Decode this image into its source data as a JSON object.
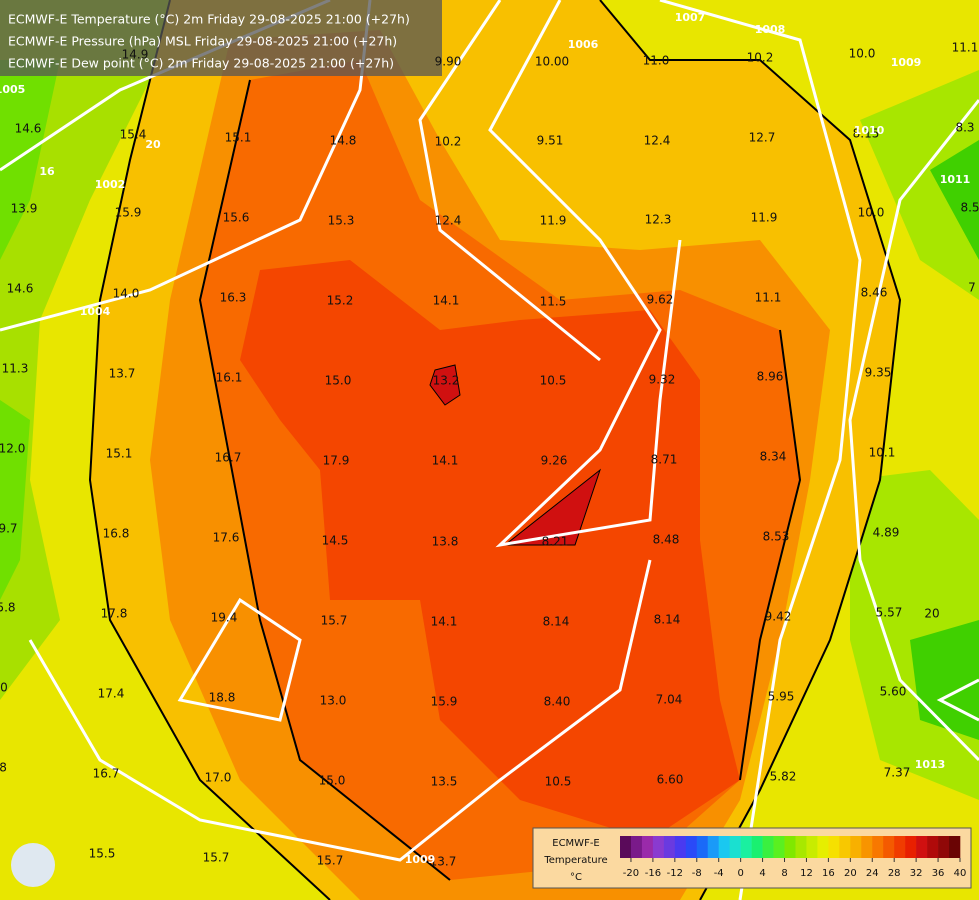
{
  "header": {
    "lines": [
      "ECMWF-E Temperature (°C) 2m Friday 29-08-2025 21:00 (+27h)",
      "ECMWF-E Pressure (hPa) MSL Friday 29-08-2025 21:00 (+27h)",
      "ECMWF-E Dew point (°C) 2m Friday 29-08-2025 21:00 (+27h)"
    ]
  },
  "map_labels": [
    "14.9",
    "9.90",
    "10.00",
    "11.0",
    "10.2",
    "10.0",
    "11.1",
    "14.6",
    "15.4",
    "15.1",
    "14.8",
    "10.2",
    "9.51",
    "12.4",
    "12.7",
    "8.15",
    "8.3",
    "13.9",
    "15.9",
    "15.6",
    "15.3",
    "12.4",
    "11.9",
    "12.3",
    "11.9",
    "10.0",
    "8.5",
    "14.6",
    "14.0",
    "16.3",
    "15.2",
    "14.1",
    "11.5",
    "9.62",
    "11.1",
    "8.46",
    "7",
    "11.3",
    "13.7",
    "16.1",
    "15.0",
    "13.2",
    "10.5",
    "9.32",
    "8.96",
    "9.35",
    "12.0",
    "15.1",
    "16.7",
    "17.9",
    "14.1",
    "9.26",
    "8.71",
    "8.34",
    "10.1",
    "9.7",
    "16.8",
    "17.6",
    "14.5",
    "13.8",
    "8.21",
    "8.48",
    "8.53",
    "4.89",
    "5.8",
    "17.8",
    "19.4",
    "15.7",
    "14.1",
    "8.14",
    "8.14",
    "9.42",
    "5.57",
    "20",
    "0",
    "17.4",
    "18.8",
    "13.0",
    "15.9",
    "8.40",
    "7.04",
    "5.95",
    "5.60",
    "8",
    "16.7",
    "17.0",
    "15.0",
    "13.5",
    "10.5",
    "6.60",
    "5.82",
    "7.37",
    "15.5",
    "15.7",
    "15.7",
    "13.7"
  ],
  "contour_labels": [
    "1004",
    "1006",
    "1007",
    "1009",
    "1010",
    "1011",
    "1002",
    "20",
    "16",
    "1005",
    "1008",
    "1013",
    "1009"
  ],
  "legend": {
    "title": "ECMWF-E",
    "subtitle": "Temperature",
    "unit": "°C",
    "range": [
      -22,
      40
    ],
    "ticks": [
      -20,
      -16,
      -12,
      -8,
      -4,
      0,
      4,
      8,
      12,
      16,
      20,
      24,
      28,
      32,
      36,
      40
    ],
    "colors": [
      "#5a0a5a",
      "#7a1a8a",
      "#9a2aaa",
      "#8a3ad0",
      "#6a3ae0",
      "#4a3af0",
      "#2a4af8",
      "#1a6af8",
      "#1a9af8",
      "#1ac8f0",
      "#1ae0d0",
      "#1af0a0",
      "#1af070",
      "#3af040",
      "#5af020",
      "#80e800",
      "#a8e800",
      "#c8ec00",
      "#e6ee00",
      "#f6e000",
      "#f8c800",
      "#f8b000",
      "#f89400",
      "#f87800",
      "#f45a00",
      "#f03c00",
      "#e82000",
      "#d01010",
      "#b00a0a",
      "#900808",
      "#6a0404"
    ]
  }
}
